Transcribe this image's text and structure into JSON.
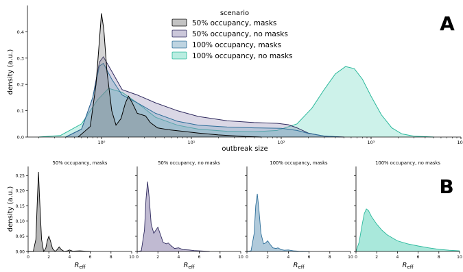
{
  "colors": {
    "50% occupancy, masks": "#7a7a7a",
    "50% occupancy, no masks": "#8c82ad",
    "100% occupancy, masks": "#6f9fbd",
    "100% occupancy, no masks": "#63d6bd",
    "50% occupancy, masks_stroke": "#000000",
    "50% occupancy, no masks_stroke": "#2f2a5e",
    "100% occupancy, masks_stroke": "#2d6e99",
    "100% occupancy, no masks_stroke": "#2ab89b"
  },
  "chart_data": [
    {
      "type": "area",
      "panel_letter": "A",
      "xlabel": "outbreak size",
      "ylabel": "density (a.u.)",
      "xscale": "log",
      "xlim": [
        0.15,
        10000
      ],
      "ylim": [
        0,
        0.5
      ],
      "x_ticks": [
        1,
        10,
        100,
        1000,
        10000
      ],
      "x_tick_labels": [
        "10⁰",
        "10¹",
        "10²",
        "10³",
        "10⁴"
      ],
      "y_ticks": [
        0.0,
        0.1,
        0.2,
        0.3,
        0.4
      ],
      "y_tick_labels": [
        "0.0",
        "0.1",
        "0.2",
        "0.3",
        "0.4"
      ],
      "legend": {
        "title": "scenario",
        "position": "top-center",
        "entries": [
          "50% occupancy, masks",
          "50% occupancy, no masks",
          "100% occupancy, masks",
          "100% occupancy, no masks"
        ]
      },
      "series": [
        {
          "name": "100% occupancy, no masks",
          "x": [
            0.2,
            0.35,
            0.6,
            0.9,
            1.2,
            1.7,
            2.5,
            4,
            7,
            12,
            25,
            50,
            90,
            150,
            220,
            300,
            400,
            520,
            650,
            800,
            1000,
            1300,
            1700,
            2200,
            3000,
            5000
          ],
          "y": [
            0.0,
            0.006,
            0.05,
            0.14,
            0.185,
            0.17,
            0.13,
            0.075,
            0.045,
            0.03,
            0.022,
            0.02,
            0.025,
            0.05,
            0.11,
            0.18,
            0.24,
            0.268,
            0.26,
            0.22,
            0.155,
            0.085,
            0.035,
            0.012,
            0.003,
            0.0
          ]
        },
        {
          "name": "50% occupancy, no masks",
          "x": [
            0.4,
            0.6,
            0.8,
            0.95,
            1.05,
            1.3,
            1.7,
            2.5,
            4,
            7,
            12,
            25,
            50,
            90,
            120,
            150,
            200,
            300,
            500
          ],
          "y": [
            0.0,
            0.03,
            0.15,
            0.285,
            0.305,
            0.25,
            0.18,
            0.16,
            0.13,
            0.1,
            0.078,
            0.062,
            0.055,
            0.052,
            0.047,
            0.035,
            0.015,
            0.003,
            0.0
          ]
        },
        {
          "name": "100% occupancy, masks",
          "x": [
            0.4,
            0.6,
            0.8,
            0.95,
            1.05,
            1.3,
            1.7,
            2.5,
            4,
            7,
            12,
            25,
            50,
            100,
            150,
            200,
            300,
            450
          ],
          "y": [
            0.0,
            0.03,
            0.15,
            0.27,
            0.28,
            0.22,
            0.16,
            0.13,
            0.09,
            0.06,
            0.045,
            0.038,
            0.035,
            0.033,
            0.025,
            0.014,
            0.004,
            0.0
          ]
        },
        {
          "name": "50% occupancy, masks",
          "x": [
            0.55,
            0.75,
            0.87,
            0.95,
            1.0,
            1.06,
            1.15,
            1.3,
            1.45,
            1.65,
            1.85,
            2.0,
            2.2,
            2.5,
            2.8,
            3.1,
            3.5,
            4.2,
            5.5,
            8,
            12,
            20,
            40,
            60
          ],
          "y": [
            0.0,
            0.04,
            0.2,
            0.37,
            0.47,
            0.41,
            0.25,
            0.1,
            0.045,
            0.07,
            0.13,
            0.155,
            0.13,
            0.09,
            0.085,
            0.08,
            0.055,
            0.035,
            0.028,
            0.022,
            0.015,
            0.008,
            0.002,
            0.0
          ]
        }
      ]
    },
    {
      "type": "area",
      "panel_letter": "B",
      "title": "50% occupancy, masks",
      "xlabel_main": "R",
      "xlabel_sub": "eff",
      "ylabel": "density (a.u.)",
      "xlim": [
        0,
        10
      ],
      "ylim": [
        0,
        0.28
      ],
      "x_ticks": [
        0,
        2,
        4,
        6,
        8,
        10
      ],
      "y_ticks": [
        0.0,
        0.05,
        0.1,
        0.15,
        0.2,
        0.25
      ],
      "y_tick_labels": [
        "0.00",
        "0.05",
        "0.10",
        "0.15",
        "0.20",
        "0.25"
      ],
      "series": [
        {
          "name": "50% occupancy, masks",
          "x": [
            0,
            0.5,
            0.75,
            0.9,
            1.0,
            1.1,
            1.3,
            1.5,
            1.7,
            1.85,
            2.0,
            2.15,
            2.35,
            2.6,
            2.8,
            3.0,
            3.2,
            3.5,
            3.8,
            4.0,
            4.3,
            5.0,
            5.5,
            6.0
          ],
          "y": [
            0.0,
            0.0,
            0.04,
            0.18,
            0.262,
            0.18,
            0.04,
            0.0,
            0.01,
            0.035,
            0.05,
            0.035,
            0.01,
            0.0,
            0.006,
            0.015,
            0.006,
            0.0,
            0.002,
            0.005,
            0.001,
            0.002,
            0.001,
            0.0
          ]
        }
      ]
    },
    {
      "type": "area",
      "title": "50% occupancy, no masks",
      "xlabel_main": "R",
      "xlabel_sub": "eff",
      "xlim": [
        0,
        10
      ],
      "ylim": [
        0,
        0.28
      ],
      "x_ticks": [
        0,
        2,
        4,
        6,
        8,
        10
      ],
      "y_ticks": [
        0.0,
        0.05,
        0.1,
        0.15,
        0.2,
        0.25
      ],
      "series": [
        {
          "name": "50% occupancy, no masks",
          "x": [
            0,
            0.4,
            0.7,
            0.85,
            1.0,
            1.15,
            1.35,
            1.6,
            1.8,
            2.0,
            2.2,
            2.5,
            2.8,
            3.0,
            3.3,
            3.6,
            4.0,
            4.4,
            5.0,
            5.5,
            6.0,
            7.0
          ],
          "y": [
            0.0,
            0.002,
            0.07,
            0.17,
            0.23,
            0.18,
            0.09,
            0.06,
            0.07,
            0.08,
            0.06,
            0.03,
            0.025,
            0.028,
            0.018,
            0.01,
            0.012,
            0.006,
            0.005,
            0.003,
            0.002,
            0.0
          ]
        }
      ]
    },
    {
      "type": "area",
      "title": "100% occupancy, masks",
      "xlabel_main": "R",
      "xlabel_sub": "eff",
      "xlim": [
        0,
        10
      ],
      "ylim": [
        0,
        0.28
      ],
      "x_ticks": [
        0,
        2,
        4,
        6,
        8,
        10
      ],
      "y_ticks": [
        0.0,
        0.05,
        0.1,
        0.15,
        0.2,
        0.25
      ],
      "series": [
        {
          "name": "100% occupancy, masks",
          "x": [
            0,
            0.4,
            0.7,
            0.85,
            1.0,
            1.15,
            1.35,
            1.6,
            1.8,
            2.0,
            2.2,
            2.5,
            2.8,
            3.0,
            3.3,
            3.6,
            4.0,
            4.5,
            5.0,
            6.0
          ],
          "y": [
            0.0,
            0.002,
            0.06,
            0.15,
            0.19,
            0.14,
            0.06,
            0.025,
            0.028,
            0.035,
            0.025,
            0.012,
            0.01,
            0.012,
            0.006,
            0.004,
            0.005,
            0.002,
            0.001,
            0.0
          ]
        }
      ]
    },
    {
      "type": "area",
      "title": "100% occupancy, no masks",
      "xlabel_main": "R",
      "xlabel_sub": "eff",
      "xlim": [
        0,
        10
      ],
      "ylim": [
        0,
        0.28
      ],
      "x_ticks": [
        0,
        2,
        4,
        6,
        8,
        10
      ],
      "y_ticks": [
        0.0,
        0.05,
        0.1,
        0.15,
        0.2,
        0.25
      ],
      "series": [
        {
          "name": "100% occupancy, no masks",
          "x": [
            0,
            0.3,
            0.6,
            0.8,
            1.0,
            1.2,
            1.5,
            2.0,
            2.5,
            3.0,
            3.5,
            4.0,
            5.0,
            6.0,
            7.0,
            8.0,
            9.0,
            10.0
          ],
          "y": [
            0.0,
            0.03,
            0.09,
            0.125,
            0.14,
            0.135,
            0.115,
            0.09,
            0.07,
            0.055,
            0.045,
            0.035,
            0.025,
            0.018,
            0.012,
            0.007,
            0.004,
            0.002
          ]
        }
      ]
    }
  ]
}
